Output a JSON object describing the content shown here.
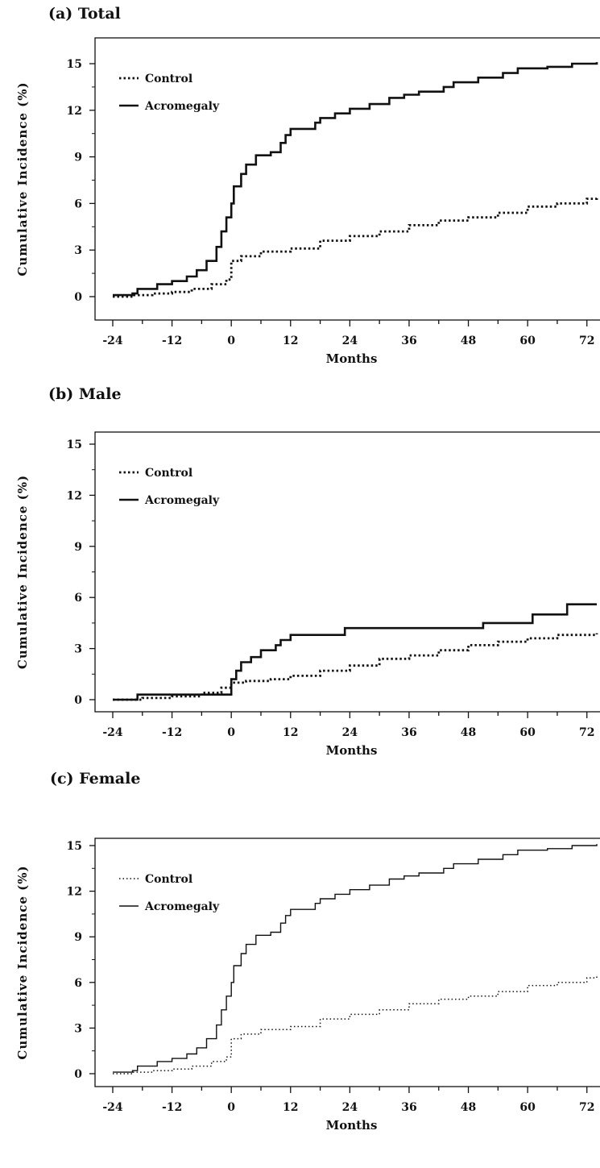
{
  "chart_data": [
    {
      "panel": "(a) Total",
      "type": "line",
      "title": "(a) Total",
      "xlabel": "Months",
      "ylabel": "Cumulative Incidence (%)",
      "xticks": [
        "-24",
        "-12",
        "0",
        "12",
        "24",
        "36",
        "48",
        "60",
        "72"
      ],
      "yticks": [
        "0",
        "3",
        "6",
        "9",
        "12",
        "15"
      ],
      "xlim": [
        -24,
        74
      ],
      "ylim": [
        0,
        15
      ],
      "legend_position": "top-left",
      "line_weight": "bold",
      "series": [
        {
          "name": "Control",
          "style": "dotted",
          "points": [
            [
              -24,
              0
            ],
            [
              -20,
              0.1
            ],
            [
              -16,
              0.2
            ],
            [
              -12,
              0.3
            ],
            [
              -8,
              0.5
            ],
            [
              -4,
              0.8
            ],
            [
              -1,
              1.1
            ],
            [
              0,
              1.3
            ],
            [
              0,
              2.3
            ],
            [
              2,
              2.6
            ],
            [
              6,
              2.9
            ],
            [
              12,
              3.1
            ],
            [
              18,
              3.6
            ],
            [
              24,
              3.9
            ],
            [
              30,
              4.2
            ],
            [
              36,
              4.6
            ],
            [
              42,
              4.9
            ],
            [
              48,
              5.1
            ],
            [
              54,
              5.4
            ],
            [
              60,
              5.8
            ],
            [
              66,
              6.0
            ],
            [
              72,
              6.3
            ],
            [
              74,
              6.4
            ]
          ]
        },
        {
          "name": "Acromegaly",
          "style": "solid",
          "points": [
            [
              -24,
              0.1
            ],
            [
              -20,
              0.2
            ],
            [
              -19,
              0.5
            ],
            [
              -15,
              0.8
            ],
            [
              -12,
              1.0
            ],
            [
              -9,
              1.3
            ],
            [
              -7,
              1.7
            ],
            [
              -5,
              2.3
            ],
            [
              -3,
              3.2
            ],
            [
              -2,
              4.2
            ],
            [
              -1,
              5.1
            ],
            [
              0,
              6.0
            ],
            [
              0.5,
              7.1
            ],
            [
              2,
              7.9
            ],
            [
              3,
              8.5
            ],
            [
              5,
              9.1
            ],
            [
              8,
              9.3
            ],
            [
              10,
              9.9
            ],
            [
              11,
              10.4
            ],
            [
              12,
              10.8
            ],
            [
              17,
              11.2
            ],
            [
              18,
              11.5
            ],
            [
              21,
              11.8
            ],
            [
              24,
              12.1
            ],
            [
              28,
              12.4
            ],
            [
              32,
              12.8
            ],
            [
              35,
              13.0
            ],
            [
              38,
              13.2
            ],
            [
              43,
              13.5
            ],
            [
              45,
              13.8
            ],
            [
              50,
              14.1
            ],
            [
              55,
              14.4
            ],
            [
              58,
              14.7
            ],
            [
              64,
              14.8
            ],
            [
              69,
              15.0
            ],
            [
              74,
              15.1
            ]
          ]
        }
      ]
    },
    {
      "panel": "(b) Male",
      "type": "line",
      "title": "(b) Male",
      "xlabel": "Months",
      "ylabel": "Cumulative Incidence (%)",
      "xticks": [
        "-24",
        "-12",
        "0",
        "12",
        "24",
        "36",
        "48",
        "60",
        "72"
      ],
      "yticks": [
        "0",
        "3",
        "6",
        "9",
        "12",
        "15"
      ],
      "xlim": [
        -24,
        74
      ],
      "ylim": [
        0,
        15
      ],
      "legend_position": "top-left",
      "line_weight": "bold",
      "series": [
        {
          "name": "Control",
          "style": "dotted",
          "points": [
            [
              -24,
              0
            ],
            [
              -18,
              0.1
            ],
            [
              -12,
              0.2
            ],
            [
              -6,
              0.4
            ],
            [
              -2,
              0.7
            ],
            [
              0,
              1.0
            ],
            [
              3,
              1.1
            ],
            [
              8,
              1.2
            ],
            [
              12,
              1.4
            ],
            [
              18,
              1.7
            ],
            [
              24,
              2.0
            ],
            [
              30,
              2.4
            ],
            [
              36,
              2.6
            ],
            [
              42,
              2.9
            ],
            [
              48,
              3.2
            ],
            [
              54,
              3.4
            ],
            [
              60,
              3.6
            ],
            [
              66,
              3.8
            ],
            [
              74,
              3.9
            ]
          ]
        },
        {
          "name": "Acromegaly",
          "style": "solid",
          "points": [
            [
              -24,
              0
            ],
            [
              -19,
              0.3
            ],
            [
              0,
              0.3
            ],
            [
              0,
              1.2
            ],
            [
              1,
              1.7
            ],
            [
              2,
              2.2
            ],
            [
              4,
              2.5
            ],
            [
              6,
              2.9
            ],
            [
              9,
              3.2
            ],
            [
              10,
              3.5
            ],
            [
              12,
              3.8
            ],
            [
              23,
              4.2
            ],
            [
              51,
              4.5
            ],
            [
              61,
              5.0
            ],
            [
              68,
              5.6
            ],
            [
              74,
              5.6
            ]
          ]
        }
      ]
    },
    {
      "panel": "(c) Female",
      "type": "line",
      "title": "(c) Female",
      "xlabel": "Months",
      "ylabel": "Cumulative Incidence (%)",
      "xticks": [
        "-24",
        "-12",
        "0",
        "12",
        "24",
        "36",
        "48",
        "60",
        "72"
      ],
      "yticks": [
        "0",
        "3",
        "6",
        "9",
        "12",
        "15"
      ],
      "xlim": [
        -24,
        74
      ],
      "ylim": [
        0,
        15
      ],
      "legend_position": "top-left",
      "line_weight": "thin",
      "series": [
        {
          "name": "Control",
          "style": "dotted",
          "points": [
            [
              -24,
              0
            ],
            [
              -20,
              0.1
            ],
            [
              -16,
              0.2
            ],
            [
              -12,
              0.3
            ],
            [
              -8,
              0.5
            ],
            [
              -4,
              0.8
            ],
            [
              -1,
              1.1
            ],
            [
              0,
              1.3
            ],
            [
              0,
              2.3
            ],
            [
              2,
              2.6
            ],
            [
              6,
              2.9
            ],
            [
              12,
              3.1
            ],
            [
              18,
              3.6
            ],
            [
              24,
              3.9
            ],
            [
              30,
              4.2
            ],
            [
              36,
              4.6
            ],
            [
              42,
              4.9
            ],
            [
              48,
              5.1
            ],
            [
              54,
              5.4
            ],
            [
              60,
              5.8
            ],
            [
              66,
              6.0
            ],
            [
              72,
              6.3
            ],
            [
              74,
              6.4
            ]
          ]
        },
        {
          "name": "Acromegaly",
          "style": "solid",
          "points": [
            [
              -24,
              0.1
            ],
            [
              -20,
              0.2
            ],
            [
              -19,
              0.5
            ],
            [
              -15,
              0.8
            ],
            [
              -12,
              1.0
            ],
            [
              -9,
              1.3
            ],
            [
              -7,
              1.7
            ],
            [
              -5,
              2.3
            ],
            [
              -3,
              3.2
            ],
            [
              -2,
              4.2
            ],
            [
              -1,
              5.1
            ],
            [
              0,
              6.0
            ],
            [
              0.5,
              7.1
            ],
            [
              2,
              7.9
            ],
            [
              3,
              8.5
            ],
            [
              5,
              9.1
            ],
            [
              8,
              9.3
            ],
            [
              10,
              9.9
            ],
            [
              11,
              10.4
            ],
            [
              12,
              10.8
            ],
            [
              17,
              11.2
            ],
            [
              18,
              11.5
            ],
            [
              21,
              11.8
            ],
            [
              24,
              12.1
            ],
            [
              28,
              12.4
            ],
            [
              32,
              12.8
            ],
            [
              35,
              13.0
            ],
            [
              38,
              13.2
            ],
            [
              43,
              13.5
            ],
            [
              45,
              13.8
            ],
            [
              50,
              14.1
            ],
            [
              55,
              14.4
            ],
            [
              58,
              14.7
            ],
            [
              64,
              14.8
            ],
            [
              69,
              15.0
            ],
            [
              74,
              15.1
            ]
          ]
        }
      ]
    }
  ]
}
